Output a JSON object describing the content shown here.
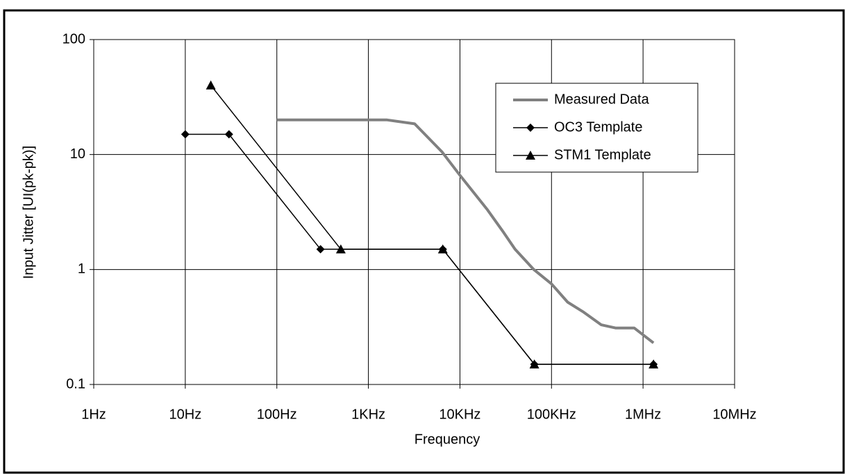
{
  "chart_data": {
    "type": "line",
    "x_label": "Frequency",
    "y_label": "Input Jitter [UI(pk-pk)]",
    "log_x": true,
    "log_y": true,
    "grid": true,
    "legend": "upper right",
    "xlim": [
      1,
      10000000
    ],
    "xticks": [
      {
        "value": 1,
        "label": "1Hz"
      },
      {
        "value": 10,
        "label": "10Hz"
      },
      {
        "value": 100,
        "label": "100Hz"
      },
      {
        "value": 1000,
        "label": "1KHz"
      },
      {
        "value": 10000,
        "label": "10KHz"
      },
      {
        "value": 100000,
        "label": "100KHz"
      },
      {
        "value": 1000000,
        "label": "1MHz"
      },
      {
        "value": 10000000,
        "label": "10MHz"
      }
    ],
    "ylim": [
      0.1,
      100
    ],
    "yticks": [
      0.1,
      1,
      10,
      100
    ],
    "series": [
      {
        "name": "Measured Data",
        "color": "#808080",
        "width": 4,
        "marker": null,
        "x": [
          100,
          1600,
          3200,
          6400,
          10000,
          20000,
          30000,
          40000,
          64000,
          100000,
          150000,
          220000,
          350000,
          500000,
          800000,
          1300000
        ],
        "values": [
          20,
          20,
          18.5,
          10.5,
          6.6,
          3.3,
          2.1,
          1.5,
          1.0,
          0.75,
          0.52,
          0.43,
          0.33,
          0.31,
          0.31,
          0.23
        ]
      },
      {
        "name": "OC3 Template",
        "color": "#000000",
        "width": 1.5,
        "marker": "diamond",
        "x": [
          10,
          30,
          300,
          6500,
          65000,
          1300000
        ],
        "values": [
          15,
          15,
          1.5,
          1.5,
          0.15,
          0.15
        ]
      },
      {
        "name": "STM1 Template",
        "color": "#000000",
        "width": 1.5,
        "marker": "triangle",
        "x": [
          19,
          500,
          6500,
          65000,
          1300000
        ],
        "values": [
          40,
          1.5,
          1.5,
          0.15,
          0.15
        ]
      }
    ]
  }
}
